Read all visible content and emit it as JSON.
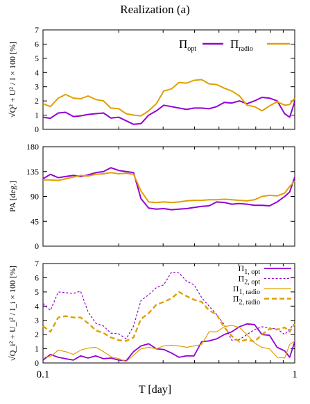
{
  "figure": {
    "title": "Realization (a)",
    "xlabel": "T [day]"
  },
  "colors": {
    "opt": "#9400d3",
    "radio": "#e0a000"
  },
  "chart_data": [
    {
      "type": "line",
      "panel": "top",
      "ylabel": "√Q² + U² / I × 100 [%]",
      "xscale": "log",
      "xlim": [
        0.1,
        1
      ],
      "ylim": [
        0,
        7
      ],
      "yticks": [
        0,
        1,
        2,
        3,
        4,
        5,
        6,
        7
      ],
      "legend_position": "top-right",
      "x": [
        0.1,
        0.107,
        0.115,
        0.123,
        0.132,
        0.141,
        0.151,
        0.162,
        0.174,
        0.186,
        0.2,
        0.214,
        0.229,
        0.245,
        0.263,
        0.282,
        0.302,
        0.324,
        0.347,
        0.372,
        0.398,
        0.427,
        0.457,
        0.49,
        0.525,
        0.562,
        0.603,
        0.646,
        0.692,
        0.741,
        0.794,
        0.851,
        0.912,
        0.955,
        1.0
      ],
      "series": [
        {
          "name": "Π_opt",
          "color_key": "opt",
          "dash": false,
          "values": [
            0.85,
            0.78,
            1.15,
            1.2,
            0.9,
            0.95,
            1.05,
            1.1,
            1.15,
            0.8,
            0.85,
            0.6,
            0.35,
            0.4,
            1.0,
            1.3,
            1.7,
            1.6,
            1.5,
            1.4,
            1.5,
            1.5,
            1.45,
            1.6,
            1.9,
            1.85,
            2.0,
            1.8,
            2.0,
            2.25,
            2.2,
            2.0,
            1.1,
            0.85,
            1.95
          ]
        },
        {
          "name": "Π_radio",
          "color_key": "radio",
          "dash": false,
          "values": [
            1.8,
            1.6,
            2.2,
            2.45,
            2.2,
            2.15,
            2.35,
            2.1,
            2.0,
            1.5,
            1.45,
            1.1,
            1.0,
            0.95,
            1.3,
            1.8,
            2.7,
            2.85,
            3.3,
            3.25,
            3.45,
            3.5,
            3.2,
            3.15,
            2.9,
            2.7,
            2.35,
            1.7,
            1.6,
            1.3,
            1.65,
            1.95,
            1.7,
            1.75,
            2.2
          ]
        }
      ]
    },
    {
      "type": "line",
      "panel": "middle",
      "ylabel": "PA [deg.]",
      "xscale": "log",
      "xlim": [
        0.1,
        1
      ],
      "ylim": [
        0,
        180
      ],
      "yticks": [
        0,
        45,
        90,
        135,
        180
      ],
      "x": [
        0.1,
        0.107,
        0.115,
        0.123,
        0.132,
        0.141,
        0.151,
        0.162,
        0.174,
        0.186,
        0.2,
        0.214,
        0.229,
        0.245,
        0.263,
        0.282,
        0.302,
        0.324,
        0.347,
        0.372,
        0.398,
        0.427,
        0.457,
        0.49,
        0.525,
        0.562,
        0.603,
        0.646,
        0.692,
        0.741,
        0.794,
        0.851,
        0.912,
        0.955,
        1.0
      ],
      "series": [
        {
          "name": "",
          "color_key": "opt",
          "dash": false,
          "values": [
            122,
            130,
            124,
            126,
            128,
            126,
            129,
            133,
            135,
            142,
            137,
            135,
            133,
            86,
            69,
            67,
            68,
            66,
            67,
            68,
            70,
            72,
            73,
            80,
            79,
            76,
            77,
            76,
            74,
            74,
            73,
            80,
            90,
            98,
            125
          ]
        },
        {
          "name": "",
          "color_key": "radio",
          "dash": false,
          "values": [
            120,
            120,
            119,
            122,
            125,
            128,
            127,
            130,
            131,
            133,
            131,
            132,
            130,
            100,
            80,
            79,
            80,
            79,
            80,
            82,
            83,
            83,
            84,
            84,
            85,
            84,
            83,
            82,
            84,
            90,
            92,
            91,
            96,
            108,
            118
          ]
        }
      ]
    },
    {
      "type": "line",
      "panel": "bottom",
      "ylabel": "√Q_i² + U_i² / I_i × 100 [%]",
      "xscale": "log",
      "xlim": [
        0.1,
        1
      ],
      "ylim": [
        0,
        7
      ],
      "yticks": [
        0,
        1,
        2,
        3,
        4,
        5,
        6,
        7
      ],
      "xticks": [
        0.1,
        1
      ],
      "legend_position": "top-right",
      "x": [
        0.1,
        0.107,
        0.115,
        0.123,
        0.132,
        0.141,
        0.151,
        0.162,
        0.174,
        0.186,
        0.2,
        0.214,
        0.229,
        0.245,
        0.263,
        0.282,
        0.302,
        0.324,
        0.347,
        0.372,
        0.398,
        0.427,
        0.457,
        0.49,
        0.525,
        0.562,
        0.603,
        0.646,
        0.692,
        0.741,
        0.794,
        0.851,
        0.912,
        0.955,
        1.0
      ],
      "series": [
        {
          "name": "Π_1,opt",
          "color_key": "opt",
          "dash": false,
          "width": 1.8,
          "values": [
            0.2,
            0.6,
            0.4,
            0.3,
            0.2,
            0.5,
            0.35,
            0.5,
            0.3,
            0.35,
            0.2,
            0.15,
            0.8,
            1.2,
            1.35,
            1.0,
            0.95,
            0.7,
            0.4,
            0.5,
            0.5,
            1.5,
            1.55,
            1.7,
            2.0,
            2.2,
            2.55,
            2.75,
            2.7,
            2.0,
            1.95,
            1.1,
            0.85,
            0.4,
            1.5
          ]
        },
        {
          "name": "Π_2,opt",
          "color_key": "opt",
          "dash": true,
          "width": 1.2,
          "values": [
            4.2,
            3.7,
            5.0,
            4.95,
            4.9,
            5.05,
            3.6,
            2.8,
            2.6,
            2.1,
            2.05,
            1.7,
            2.6,
            4.4,
            4.8,
            5.3,
            5.5,
            6.4,
            6.35,
            5.75,
            5.5,
            4.6,
            4.0,
            3.4,
            2.7,
            1.6,
            1.65,
            2.0,
            2.35,
            2.55,
            2.45,
            2.4,
            2.0,
            2.4,
            2.8
          ]
        },
        {
          "name": "Π_1,radio",
          "color_key": "radio",
          "dash": false,
          "width": 1.2,
          "values": [
            0.4,
            0.45,
            0.9,
            0.8,
            0.6,
            0.9,
            1.05,
            1.1,
            0.8,
            0.45,
            0.3,
            0.1,
            0.55,
            1.0,
            1.1,
            1.0,
            1.2,
            1.25,
            1.2,
            1.1,
            1.2,
            1.3,
            2.2,
            2.2,
            2.55,
            2.65,
            2.5,
            2.0,
            1.4,
            1.1,
            1.0,
            0.4,
            0.35,
            1.3,
            1.55
          ]
        },
        {
          "name": "Π_2,radio",
          "color_key": "radio",
          "dash": true,
          "width": 2.4,
          "values": [
            2.6,
            2.2,
            3.2,
            3.3,
            3.2,
            3.2,
            2.8,
            2.3,
            2.1,
            1.8,
            1.6,
            1.55,
            1.8,
            3.1,
            3.5,
            4.1,
            4.3,
            4.55,
            5.0,
            4.7,
            4.45,
            4.3,
            3.7,
            3.4,
            2.5,
            1.9,
            1.5,
            1.65,
            1.5,
            2.0,
            2.4,
            2.35,
            2.5,
            2.2,
            2.75
          ]
        }
      ]
    }
  ]
}
